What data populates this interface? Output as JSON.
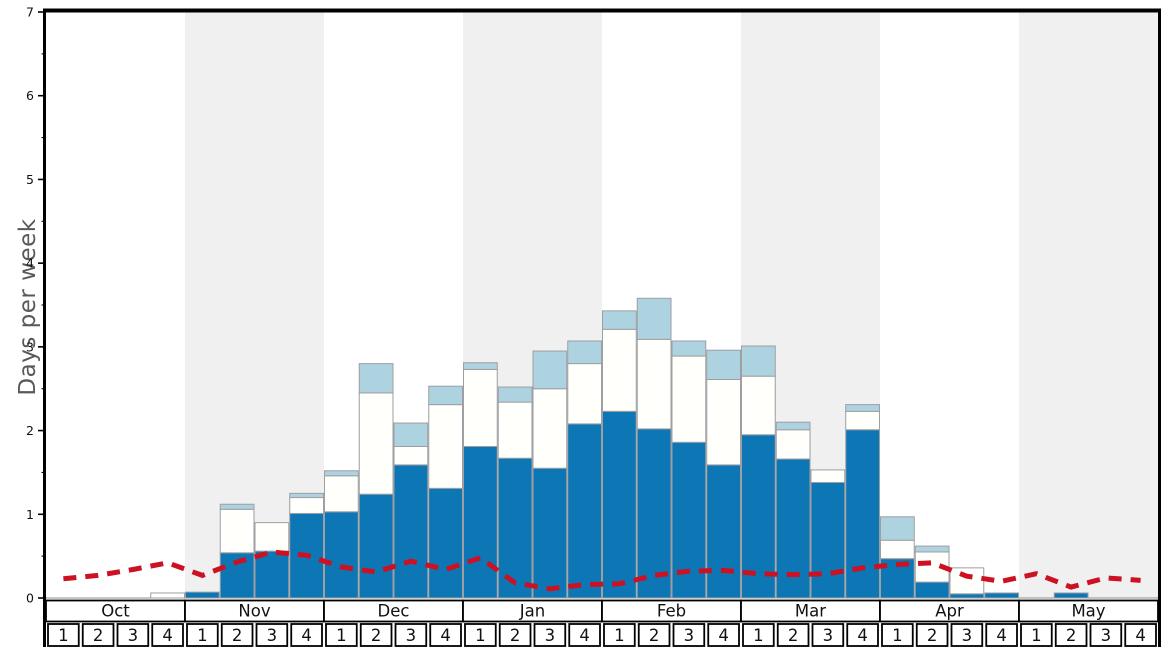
{
  "chart_data": {
    "type": "bar",
    "title": "",
    "ylabel": "Days per week",
    "xlabel": "",
    "ylim": [
      0,
      7
    ],
    "y_ticks": [
      0,
      1,
      2,
      3,
      4,
      5,
      6,
      7
    ],
    "y_minor_step": 0.5,
    "grid": false,
    "legend": "none",
    "months": [
      "Oct",
      "Nov",
      "Dec",
      "Jan",
      "Feb",
      "Mar",
      "Apr",
      "May"
    ],
    "week_labels": [
      "1",
      "2",
      "3",
      "4"
    ],
    "shaded_month_indices": [
      1,
      3,
      5,
      7
    ],
    "colors": {
      "dark_blue": "#0d76b4",
      "white_bar": "#fffffb",
      "light_blue": "#aed3e0",
      "bar_border": "#9e9ea3",
      "band_gray": "#f0f0f0",
      "red_line": "#cc1122",
      "axis_black": "#000000",
      "baseline_gray": "#8c8c8c"
    },
    "series": [
      {
        "name": "dark_blue_bars",
        "color": "#0d76b4",
        "values": [
          0,
          0,
          0,
          0,
          0.07,
          0.54,
          0.56,
          1.01,
          1.03,
          1.24,
          1.59,
          1.31,
          1.81,
          1.67,
          1.55,
          2.08,
          2.23,
          2.02,
          1.86,
          1.59,
          1.95,
          1.66,
          1.38,
          2.01,
          0.47,
          0.19,
          0.05,
          0.06,
          0,
          0.06,
          0,
          0
        ]
      },
      {
        "name": "white_bars",
        "color": "#fffffb",
        "values": [
          0,
          0,
          0,
          0.06,
          0,
          0.52,
          0.34,
          0.19,
          0.43,
          1.21,
          0.22,
          1.0,
          0.92,
          0.67,
          0.95,
          0.72,
          0.98,
          1.07,
          1.03,
          1.02,
          0.7,
          0.35,
          0.15,
          0.22,
          0.22,
          0.36,
          0.31,
          0,
          0,
          0,
          0,
          0
        ]
      },
      {
        "name": "light_blue_bars",
        "color": "#aed3e0",
        "values": [
          0,
          0,
          0,
          0,
          0,
          0.06,
          0,
          0.05,
          0.06,
          0.35,
          0.28,
          0.22,
          0.08,
          0.18,
          0.45,
          0.27,
          0.22,
          0.49,
          0.18,
          0.35,
          0.36,
          0.09,
          0,
          0.08,
          0.28,
          0.07,
          0,
          0,
          0,
          0,
          0,
          0
        ]
      }
    ],
    "line": {
      "name": "red_dashed_average_line",
      "color": "#cc1122",
      "values": [
        0.23,
        0.27,
        0.34,
        0.42,
        0.27,
        0.43,
        0.55,
        0.51,
        0.37,
        0.31,
        0.44,
        0.34,
        0.48,
        0.18,
        0.11,
        0.16,
        0.17,
        0.27,
        0.32,
        0.33,
        0.29,
        0.28,
        0.29,
        0.36,
        0.4,
        0.42,
        0.26,
        0.2,
        0.29,
        0.13,
        0.24,
        0.21
      ]
    }
  }
}
